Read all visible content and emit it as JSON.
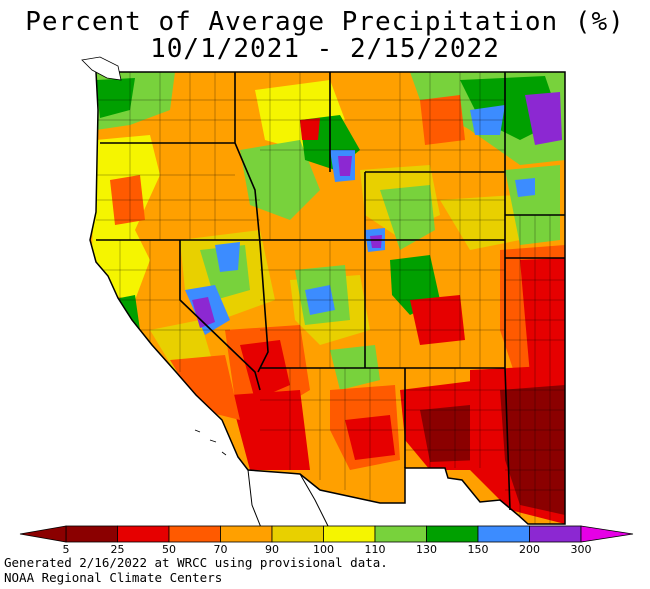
{
  "title": "Percent of Average Precipitation (%)",
  "subtitle": "10/1/2021 - 2/15/2022",
  "legend": {
    "ticks": [
      "5",
      "25",
      "50",
      "70",
      "90",
      "100",
      "110",
      "130",
      "150",
      "200",
      "300"
    ],
    "colors": [
      "#8b0000",
      "#e60000",
      "#ff5a00",
      "#ffa000",
      "#e8d000",
      "#f5f500",
      "#78d23c",
      "#00a000",
      "#3c8cff",
      "#8c28d2",
      "#e600e6"
    ]
  },
  "footer": {
    "line1": "Generated 2/16/2022 at WRCC using provisional data.",
    "line2": "NOAA Regional Climate Centers"
  }
}
